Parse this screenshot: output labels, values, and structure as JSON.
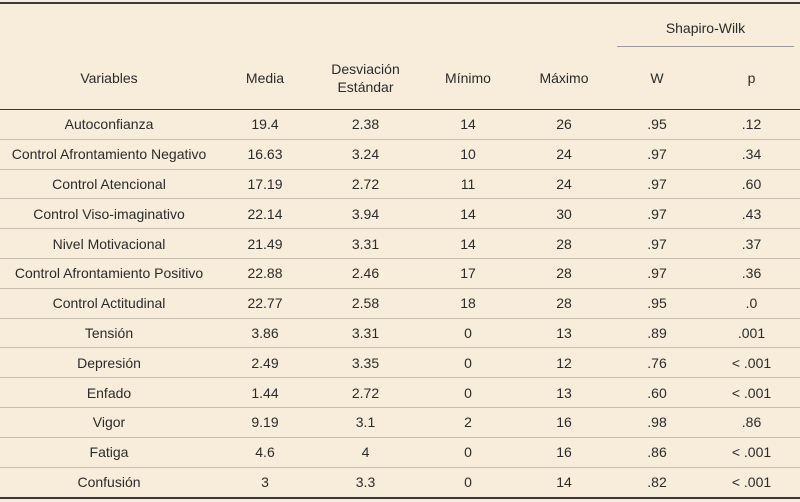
{
  "header": {
    "group_label": "Shapiro-Wilk",
    "columns": [
      "Variables",
      "Media",
      "Desviación Estándar",
      "Mínimo",
      "Máximo",
      "W",
      "p"
    ]
  },
  "rows": [
    [
      "Autoconfianza",
      "19.4",
      "2.38",
      "14",
      "26",
      ".95",
      ".12"
    ],
    [
      "Control Afrontamiento Negativo",
      "16.63",
      "3.24",
      "10",
      "24",
      ".97",
      ".34"
    ],
    [
      "Control Atencional",
      "17.19",
      "2.72",
      "11",
      "24",
      ".97",
      ".60"
    ],
    [
      "Control Viso-imaginativo",
      "22.14",
      "3.94",
      "14",
      "30",
      ".97",
      ".43"
    ],
    [
      "Nivel Motivacional",
      "21.49",
      "3.31",
      "14",
      "28",
      ".97",
      ".37"
    ],
    [
      "Control Afrontamiento Positivo",
      "22.88",
      "2.46",
      "17",
      "28",
      ".97",
      ".36"
    ],
    [
      "Control Actitudinal",
      "22.77",
      "2.58",
      "18",
      "28",
      ".95",
      ".0"
    ],
    [
      "Tensión",
      "3.86",
      "3.31",
      "0",
      "13",
      ".89",
      ".001"
    ],
    [
      "Depresión",
      "2.49",
      "3.35",
      "0",
      "12",
      ".76",
      "< .001"
    ],
    [
      "Enfado",
      "1.44",
      "2.72",
      "0",
      "13",
      ".60",
      "< .001"
    ],
    [
      "Vigor",
      "9.19",
      "3.1",
      "2",
      "16",
      ".98",
      ".86"
    ],
    [
      "Fatiga",
      "4.6",
      "4",
      "0",
      "16",
      ".86",
      "< .001"
    ],
    [
      "Confusión",
      "3",
      "3.3",
      "0",
      "14",
      ".82",
      "< .001"
    ]
  ]
}
